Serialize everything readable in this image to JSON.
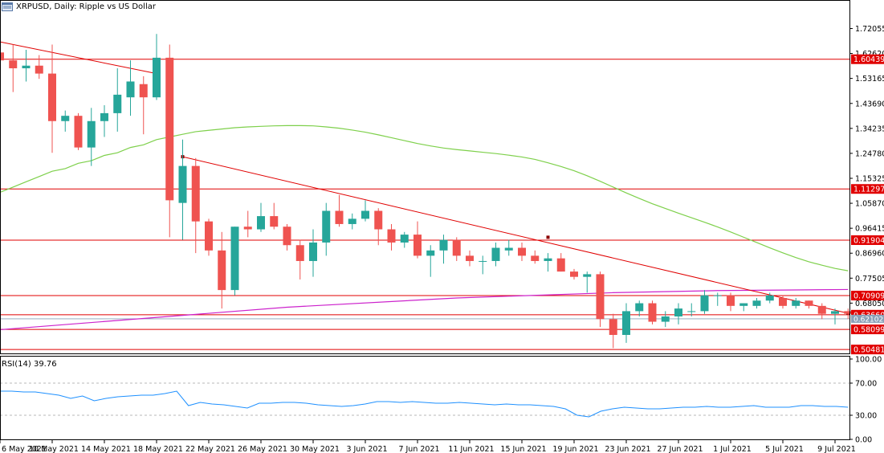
{
  "chart_data": {
    "type": "candlestick",
    "symbol": "XRPUSD",
    "timeframe": "Daily",
    "title": "XRPUSD, Daily:  Ripple vs US Dollar",
    "price_ticks": [
      "1.72055",
      "1.62620",
      "1.53165",
      "1.43690",
      "1.34235",
      "1.24780",
      "1.15325",
      "1.05870",
      "0.96415",
      "0.86960",
      "0.77505",
      "0.68050"
    ],
    "ylim": [
      0.49,
      1.78
    ],
    "date_labels": [
      "6 May 2021",
      "10 May 2021",
      "14 May 2021",
      "18 May 2021",
      "22 May 2021",
      "26 May 2021",
      "30 May 2021",
      "3 Jun 2021",
      "7 Jun 2021",
      "11 Jun 2021",
      "15 Jun 2021",
      "19 Jun 2021",
      "23 Jun 2021",
      "27 Jun 2021",
      "1 Jul 2021",
      "5 Jul 2021",
      "9 Jul 2021"
    ],
    "candles": [
      {
        "date": "2021-05-06",
        "o": 1.63,
        "h": 1.69,
        "l": 1.52,
        "c": 1.6
      },
      {
        "date": "2021-05-07",
        "o": 1.6,
        "h": 1.66,
        "l": 1.48,
        "c": 1.57
      },
      {
        "date": "2021-05-08",
        "o": 1.57,
        "h": 1.64,
        "l": 1.52,
        "c": 1.58
      },
      {
        "date": "2021-05-09",
        "o": 1.58,
        "h": 1.62,
        "l": 1.53,
        "c": 1.55
      },
      {
        "date": "2021-05-10",
        "o": 1.55,
        "h": 1.66,
        "l": 1.25,
        "c": 1.37
      },
      {
        "date": "2021-05-11",
        "o": 1.37,
        "h": 1.41,
        "l": 1.33,
        "c": 1.39
      },
      {
        "date": "2021-05-12",
        "o": 1.39,
        "h": 1.4,
        "l": 1.26,
        "c": 1.27
      },
      {
        "date": "2021-05-13",
        "o": 1.27,
        "h": 1.42,
        "l": 1.2,
        "c": 1.37
      },
      {
        "date": "2021-05-14",
        "o": 1.37,
        "h": 1.43,
        "l": 1.31,
        "c": 1.4
      },
      {
        "date": "2021-05-15",
        "o": 1.4,
        "h": 1.57,
        "l": 1.33,
        "c": 1.47
      },
      {
        "date": "2021-05-16",
        "o": 1.46,
        "h": 1.6,
        "l": 1.39,
        "c": 1.52
      },
      {
        "date": "2021-05-17",
        "o": 1.51,
        "h": 1.54,
        "l": 1.32,
        "c": 1.46
      },
      {
        "date": "2021-05-18",
        "o": 1.46,
        "h": 1.7,
        "l": 1.45,
        "c": 1.61
      },
      {
        "date": "2021-05-19",
        "o": 1.61,
        "h": 1.66,
        "l": 0.93,
        "c": 1.07
      },
      {
        "date": "2021-05-20",
        "o": 1.06,
        "h": 1.3,
        "l": 0.92,
        "c": 1.2
      },
      {
        "date": "2021-05-21",
        "o": 1.2,
        "h": 1.23,
        "l": 0.87,
        "c": 0.99
      },
      {
        "date": "2021-05-22",
        "o": 0.99,
        "h": 1.0,
        "l": 0.86,
        "c": 0.88
      },
      {
        "date": "2021-05-23",
        "o": 0.88,
        "h": 0.95,
        "l": 0.66,
        "c": 0.73
      },
      {
        "date": "2021-05-24",
        "o": 0.73,
        "h": 0.97,
        "l": 0.71,
        "c": 0.97
      },
      {
        "date": "2021-05-25",
        "o": 0.97,
        "h": 1.03,
        "l": 0.93,
        "c": 0.96
      },
      {
        "date": "2021-05-26",
        "o": 0.96,
        "h": 1.06,
        "l": 0.95,
        "c": 1.01
      },
      {
        "date": "2021-05-27",
        "o": 1.01,
        "h": 1.06,
        "l": 0.96,
        "c": 0.97
      },
      {
        "date": "2021-05-28",
        "o": 0.97,
        "h": 0.98,
        "l": 0.88,
        "c": 0.9
      },
      {
        "date": "2021-05-29",
        "o": 0.9,
        "h": 0.92,
        "l": 0.77,
        "c": 0.84
      },
      {
        "date": "2021-05-30",
        "o": 0.84,
        "h": 0.96,
        "l": 0.78,
        "c": 0.91
      },
      {
        "date": "2021-05-31",
        "o": 0.91,
        "h": 1.06,
        "l": 0.86,
        "c": 1.03
      },
      {
        "date": "2021-06-01",
        "o": 1.03,
        "h": 1.09,
        "l": 0.97,
        "c": 0.98
      },
      {
        "date": "2021-06-02",
        "o": 0.98,
        "h": 1.02,
        "l": 0.96,
        "c": 1.0
      },
      {
        "date": "2021-06-03",
        "o": 1.0,
        "h": 1.07,
        "l": 0.99,
        "c": 1.03
      },
      {
        "date": "2021-06-04",
        "o": 1.03,
        "h": 1.04,
        "l": 0.9,
        "c": 0.96
      },
      {
        "date": "2021-06-05",
        "o": 0.96,
        "h": 0.98,
        "l": 0.88,
        "c": 0.91
      },
      {
        "date": "2021-06-06",
        "o": 0.91,
        "h": 0.95,
        "l": 0.89,
        "c": 0.94
      },
      {
        "date": "2021-06-07",
        "o": 0.94,
        "h": 0.99,
        "l": 0.85,
        "c": 0.86
      },
      {
        "date": "2021-06-08",
        "o": 0.86,
        "h": 0.9,
        "l": 0.78,
        "c": 0.88
      },
      {
        "date": "2021-06-09",
        "o": 0.88,
        "h": 0.94,
        "l": 0.83,
        "c": 0.92
      },
      {
        "date": "2021-06-10",
        "o": 0.92,
        "h": 0.93,
        "l": 0.84,
        "c": 0.86
      },
      {
        "date": "2021-06-11",
        "o": 0.86,
        "h": 0.88,
        "l": 0.82,
        "c": 0.84
      },
      {
        "date": "2021-06-12",
        "o": 0.84,
        "h": 0.86,
        "l": 0.79,
        "c": 0.84
      },
      {
        "date": "2021-06-13",
        "o": 0.84,
        "h": 0.91,
        "l": 0.82,
        "c": 0.89
      },
      {
        "date": "2021-06-14",
        "o": 0.88,
        "h": 0.92,
        "l": 0.86,
        "c": 0.89
      },
      {
        "date": "2021-06-15",
        "o": 0.89,
        "h": 0.91,
        "l": 0.84,
        "c": 0.86
      },
      {
        "date": "2021-06-16",
        "o": 0.86,
        "h": 0.88,
        "l": 0.83,
        "c": 0.84
      },
      {
        "date": "2021-06-17",
        "o": 0.84,
        "h": 0.87,
        "l": 0.8,
        "c": 0.85
      },
      {
        "date": "2021-06-18",
        "o": 0.85,
        "h": 0.87,
        "l": 0.8,
        "c": 0.8
      },
      {
        "date": "2021-06-19",
        "o": 0.8,
        "h": 0.81,
        "l": 0.77,
        "c": 0.78
      },
      {
        "date": "2021-06-20",
        "o": 0.78,
        "h": 0.8,
        "l": 0.72,
        "c": 0.79
      },
      {
        "date": "2021-06-21",
        "o": 0.79,
        "h": 0.8,
        "l": 0.59,
        "c": 0.62
      },
      {
        "date": "2021-06-22",
        "o": 0.62,
        "h": 0.64,
        "l": 0.51,
        "c": 0.56
      },
      {
        "date": "2021-06-23",
        "o": 0.56,
        "h": 0.68,
        "l": 0.53,
        "c": 0.65
      },
      {
        "date": "2021-06-24",
        "o": 0.65,
        "h": 0.69,
        "l": 0.63,
        "c": 0.68
      },
      {
        "date": "2021-06-25",
        "o": 0.68,
        "h": 0.69,
        "l": 0.6,
        "c": 0.61
      },
      {
        "date": "2021-06-26",
        "o": 0.61,
        "h": 0.65,
        "l": 0.59,
        "c": 0.63
      },
      {
        "date": "2021-06-27",
        "o": 0.63,
        "h": 0.68,
        "l": 0.6,
        "c": 0.66
      },
      {
        "date": "2021-06-28",
        "o": 0.65,
        "h": 0.68,
        "l": 0.63,
        "c": 0.65
      },
      {
        "date": "2021-06-29",
        "o": 0.65,
        "h": 0.73,
        "l": 0.64,
        "c": 0.71
      },
      {
        "date": "2021-06-30",
        "o": 0.71,
        "h": 0.72,
        "l": 0.67,
        "c": 0.71
      },
      {
        "date": "2021-07-01",
        "o": 0.71,
        "h": 0.72,
        "l": 0.65,
        "c": 0.67
      },
      {
        "date": "2021-07-02",
        "o": 0.67,
        "h": 0.68,
        "l": 0.65,
        "c": 0.68
      },
      {
        "date": "2021-07-03",
        "o": 0.67,
        "h": 0.7,
        "l": 0.66,
        "c": 0.69
      },
      {
        "date": "2021-07-04",
        "o": 0.69,
        "h": 0.72,
        "l": 0.68,
        "c": 0.71
      },
      {
        "date": "2021-07-05",
        "o": 0.7,
        "h": 0.71,
        "l": 0.66,
        "c": 0.67
      },
      {
        "date": "2021-07-06",
        "o": 0.67,
        "h": 0.7,
        "l": 0.66,
        "c": 0.69
      },
      {
        "date": "2021-07-07",
        "o": 0.69,
        "h": 0.69,
        "l": 0.66,
        "c": 0.67
      },
      {
        "date": "2021-07-08",
        "o": 0.67,
        "h": 0.68,
        "l": 0.62,
        "c": 0.64
      },
      {
        "date": "2021-07-09",
        "o": 0.64,
        "h": 0.66,
        "l": 0.6,
        "c": 0.65
      },
      {
        "date": "2021-07-10",
        "o": 0.65,
        "h": 0.66,
        "l": 0.62,
        "c": 0.64
      }
    ],
    "ma_green": [
      [
        1.1
      ],
      [
        1.12
      ],
      [
        1.14
      ],
      [
        1.16
      ],
      [
        1.18
      ],
      [
        1.19
      ],
      [
        1.21
      ],
      [
        1.22
      ],
      [
        1.24
      ],
      [
        1.25
      ],
      [
        1.27
      ],
      [
        1.28
      ],
      [
        1.3
      ],
      [
        1.31
      ],
      [
        1.32
      ],
      [
        1.33
      ],
      [
        1.335
      ],
      [
        1.34
      ],
      [
        1.345
      ],
      [
        1.348
      ],
      [
        1.35
      ],
      [
        1.352
      ],
      [
        1.353
      ],
      [
        1.353
      ],
      [
        1.352
      ],
      [
        1.348
      ],
      [
        1.343
      ],
      [
        1.336
      ],
      [
        1.328
      ],
      [
        1.318
      ],
      [
        1.307
      ],
      [
        1.296
      ],
      [
        1.285
      ],
      [
        1.276
      ],
      [
        1.268
      ],
      [
        1.262
      ],
      [
        1.257
      ],
      [
        1.252
      ],
      [
        1.247
      ],
      [
        1.241
      ],
      [
        1.234
      ],
      [
        1.225
      ],
      [
        1.212
      ],
      [
        1.198
      ],
      [
        1.182
      ],
      [
        1.163
      ],
      [
        1.142
      ],
      [
        1.12
      ],
      [
        1.098
      ],
      [
        1.077
      ],
      [
        1.057
      ],
      [
        1.039
      ],
      [
        1.021
      ],
      [
        1.004
      ],
      [
        0.987
      ],
      [
        0.969
      ],
      [
        0.95
      ],
      [
        0.93
      ],
      [
        0.91
      ],
      [
        0.89
      ],
      [
        0.871
      ],
      [
        0.853
      ],
      [
        0.837
      ],
      [
        0.824
      ],
      [
        0.812
      ],
      [
        0.803
      ]
    ],
    "ma_magenta_points": [
      [
        0,
        0.58
      ],
      [
        22,
        0.665
      ],
      [
        35,
        0.7
      ],
      [
        47,
        0.72
      ],
      [
        55,
        0.728
      ],
      [
        60,
        0.73
      ],
      [
        65,
        0.732
      ]
    ],
    "trendlines": [
      {
        "from": [
          0,
          1.67
        ],
        "to": [
          12,
          1.55
        ]
      },
      {
        "from": [
          14,
          1.235
        ],
        "to": [
          65,
          0.642
        ]
      }
    ],
    "trendline_anchors": [
      [
        14,
        1.235
      ],
      [
        42,
        0.93
      ],
      [
        65,
        0.642
      ]
    ],
    "h_levels": [
      {
        "value": 1.60439,
        "label": "1.60439"
      },
      {
        "value": 1.11297,
        "label": "1.11297"
      },
      {
        "value": 0.91904,
        "label": "0.91904"
      },
      {
        "value": 0.70909,
        "label": "0.70909"
      },
      {
        "value": 0.6366,
        "label": "0.63660"
      },
      {
        "value": 0.58099,
        "label": "0.58099"
      },
      {
        "value": 0.50481,
        "label": "0.50481"
      }
    ],
    "current_price": "0.62102",
    "rsi": {
      "label": "RSI(14) 39.76",
      "ticks": [
        "100.00",
        "70.00",
        "30.00",
        "0.00"
      ],
      "ylim": [
        0,
        100
      ],
      "values": [
        60,
        60,
        59,
        59,
        57,
        55,
        51,
        54,
        48,
        51,
        53,
        54,
        55,
        55,
        57,
        60,
        42,
        46,
        44,
        43,
        41,
        39,
        45,
        45,
        46,
        46,
        45,
        43,
        42,
        41,
        42,
        44,
        47,
        47,
        46,
        47,
        46,
        45,
        45,
        46,
        45,
        44,
        43,
        44,
        43,
        43,
        42,
        41,
        38,
        30,
        28,
        35,
        38,
        40,
        39,
        38,
        38,
        39,
        40,
        40,
        41,
        40,
        40,
        41,
        42,
        40,
        40,
        40,
        42,
        42,
        41,
        41,
        40
      ]
    }
  },
  "colors": {
    "bull": "#26a69a",
    "bear": "#ef5350",
    "level": "#e00000",
    "ma_green": "#7ed04b",
    "ma_magenta": "#cc22cc",
    "rsi_line": "#1e90ff"
  }
}
